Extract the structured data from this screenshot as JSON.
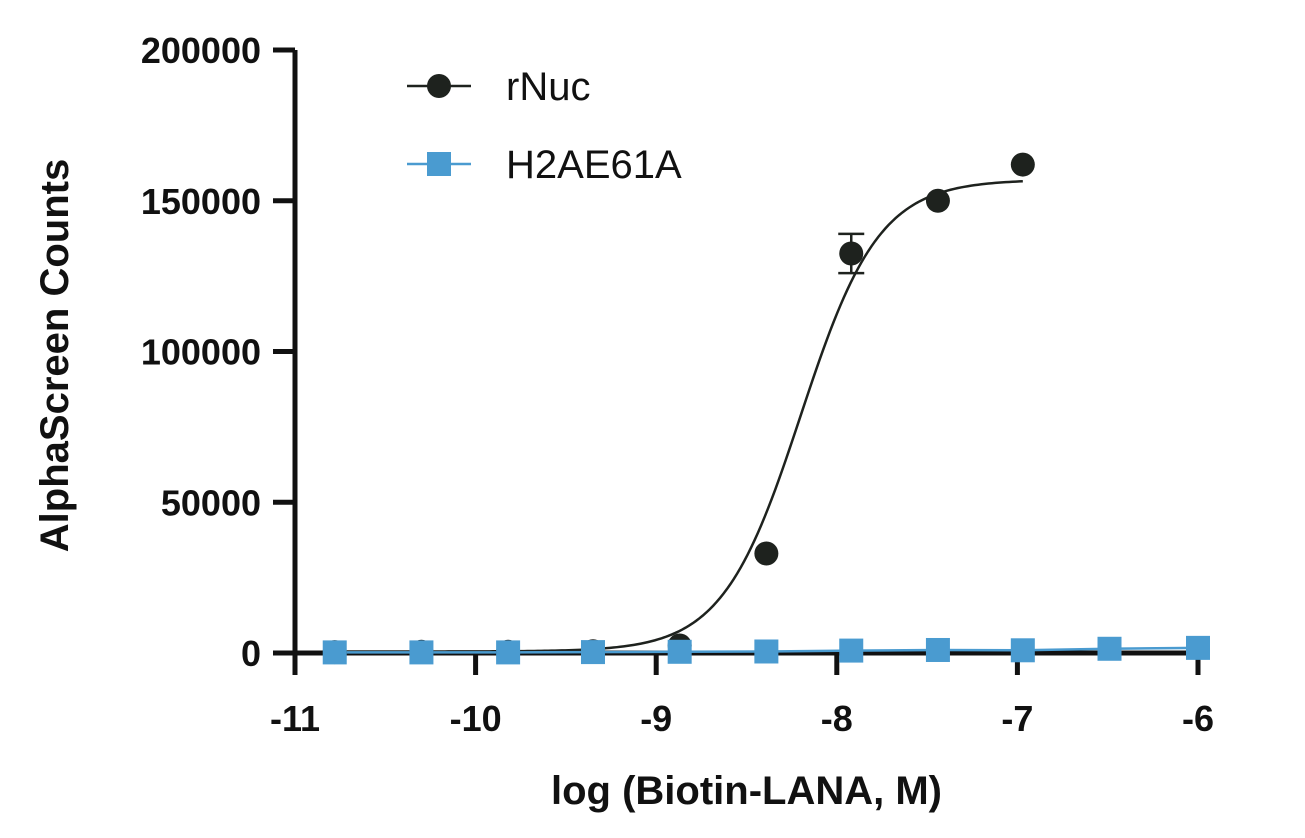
{
  "chart_data": {
    "type": "scatter",
    "xlabel": "log (Biotin-LANA, M)",
    "ylabel": "AlphaScreen  Counts",
    "xlim": [
      -11,
      -6
    ],
    "ylim": [
      0,
      200000
    ],
    "x_ticks": [
      -11,
      -10,
      -9,
      -8,
      -7,
      -6
    ],
    "x_tick_labels": [
      "-11",
      "-10",
      "-9",
      "-8",
      "-7",
      "-6"
    ],
    "y_ticks": [
      0,
      50000,
      100000,
      150000,
      200000
    ],
    "y_tick_labels": [
      "0",
      "50000",
      "100000",
      "150000",
      "200000"
    ],
    "grid": false,
    "legend_position": "top-left",
    "series": [
      {
        "name": "rNuc",
        "marker": "circle",
        "color": "#1e221e",
        "x": [
          -10.78,
          -10.3,
          -9.82,
          -9.35,
          -8.87,
          -8.39,
          -7.92,
          -7.44,
          -6.97
        ],
        "y": [
          300,
          400,
          400,
          600,
          2500,
          33000,
          132500,
          150000,
          162000
        ],
        "error": [
          0,
          0,
          0,
          0,
          0,
          0,
          6500,
          0,
          0
        ],
        "fit": {
          "model": "sigmoidal dose-response",
          "bottom": 500,
          "top": 157000,
          "log_ec50": -8.2,
          "hill_slope": 2.0,
          "x_range": [
            -10.78,
            -6.97
          ]
        }
      },
      {
        "name": "H2AE61A",
        "marker": "square",
        "color": "#4a9bd0",
        "x": [
          -10.78,
          -10.3,
          -9.82,
          -9.35,
          -8.87,
          -8.39,
          -7.92,
          -7.44,
          -6.97,
          -6.49,
          -6.0
        ],
        "y": [
          200,
          200,
          200,
          300,
          400,
          500,
          800,
          1000,
          900,
          1400,
          1700
        ]
      }
    ]
  }
}
